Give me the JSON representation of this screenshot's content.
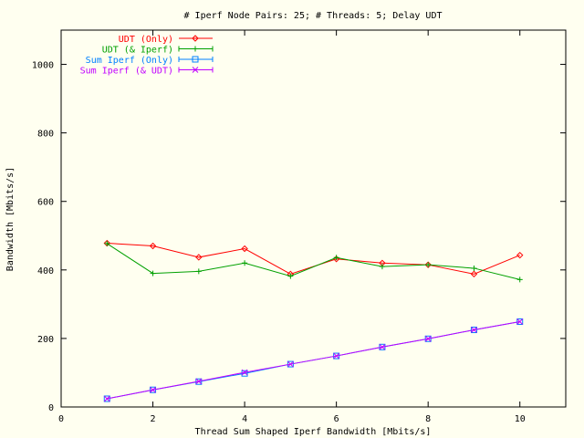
{
  "chart_data": {
    "type": "line",
    "title": "# Iperf Node Pairs: 25; # Threads: 5; Delay UDT",
    "xlabel": "Thread Sum Shaped Iperf Bandwidth [Mbits/s]",
    "ylabel": "Bandwidth [Mbits/s]",
    "xlim": [
      0,
      11
    ],
    "ylim": [
      0,
      1100
    ],
    "xticks": [
      0,
      2,
      4,
      6,
      8,
      10
    ],
    "yticks": [
      0,
      200,
      400,
      600,
      800,
      1000
    ],
    "grid": false,
    "legend_position": "top-left",
    "series": [
      {
        "name": "UDT (Only)",
        "color": "#ff0000",
        "marker": "diamond",
        "x": [
          1,
          2,
          3,
          4,
          5,
          6,
          7,
          8,
          9,
          10
        ],
        "y": [
          478,
          470,
          437,
          462,
          388,
          432,
          420,
          415,
          388,
          443
        ]
      },
      {
        "name": "UDT (& Iperf)",
        "color": "#00a000",
        "marker": "plus",
        "x": [
          1,
          2,
          3,
          4,
          5,
          6,
          7,
          8,
          9,
          10
        ],
        "y": [
          477,
          390,
          396,
          420,
          382,
          436,
          410,
          415,
          405,
          372
        ]
      },
      {
        "name": "Sum Iperf (Only)",
        "color": "#0080ff",
        "marker": "square",
        "x": [
          1,
          2,
          3,
          4,
          5,
          6,
          7,
          8,
          9,
          10
        ],
        "y": [
          24,
          50,
          74,
          98,
          125,
          149,
          175,
          199,
          225,
          249
        ]
      },
      {
        "name": "Sum Iperf (& UDT)",
        "color": "#c000ff",
        "marker": "x",
        "x": [
          1,
          2,
          3,
          4,
          5,
          6,
          7,
          8,
          9,
          10
        ],
        "y": [
          24,
          50,
          75,
          101,
          125,
          149,
          175,
          199,
          225,
          249
        ]
      }
    ]
  }
}
